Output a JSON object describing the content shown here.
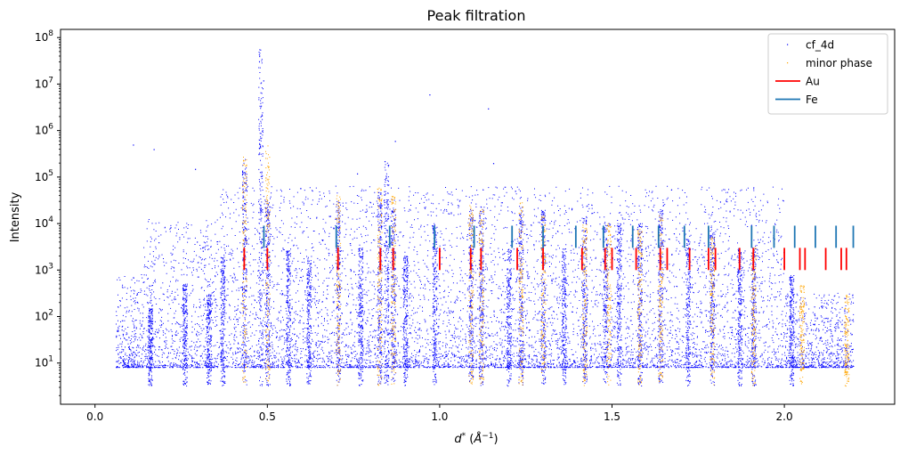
{
  "chart_data": {
    "type": "scatter",
    "title": "Peak filtration",
    "xlabel": "d* (Å⁻¹)",
    "xlabel_parts": {
      "main": "d",
      "sup1": "*",
      "unit_open": "(",
      "unit_letter": "Å",
      "unit_sup": "−1",
      "unit_close": ")"
    },
    "ylabel": "Intensity",
    "xscale": "linear",
    "yscale": "log",
    "xlim": [
      -0.1,
      2.32
    ],
    "ylim": [
      1.3,
      150000000
    ],
    "xticks": [
      0.0,
      0.5,
      1.0,
      1.5,
      2.0
    ],
    "xtick_labels": [
      "0.0",
      "0.5",
      "1.0",
      "1.5",
      "2.0"
    ],
    "yticks": [
      10,
      100,
      1000,
      10000,
      100000,
      1000000,
      10000000,
      100000000
    ],
    "ytick_labels": [
      {
        "base": "10",
        "exp": "1"
      },
      {
        "base": "10",
        "exp": "2"
      },
      {
        "base": "10",
        "exp": "3"
      },
      {
        "base": "10",
        "exp": "4"
      },
      {
        "base": "10",
        "exp": "5"
      },
      {
        "base": "10",
        "exp": "6"
      },
      {
        "base": "10",
        "exp": "7"
      },
      {
        "base": "10",
        "exp": "8"
      }
    ],
    "legend": {
      "placement": "top-right",
      "entries": [
        {
          "label": "cf_4d",
          "kind": "point",
          "color": "#0000ff"
        },
        {
          "label": "minor phase",
          "kind": "point",
          "color": "#ffa500"
        },
        {
          "label": "Au",
          "kind": "line",
          "color": "#ff0000"
        },
        {
          "label": "Fe",
          "kind": "line",
          "color": "#1f77b4"
        }
      ]
    },
    "series": [
      {
        "name": "cf_4d",
        "color": "#0000ff",
        "marker": "pixel",
        "background_x_range": [
          0.06,
          2.2
        ],
        "background_floor": 8,
        "peaks": [
          {
            "x": 0.16,
            "y": 150
          },
          {
            "x": 0.26,
            "y": 500
          },
          {
            "x": 0.33,
            "y": 300
          },
          {
            "x": 0.37,
            "y": 2000
          },
          {
            "x": 0.433,
            "y": 300000
          },
          {
            "x": 0.48,
            "y": 60000000
          },
          {
            "x": 0.5,
            "y": 30000
          },
          {
            "x": 0.56,
            "y": 3000
          },
          {
            "x": 0.62,
            "y": 2000
          },
          {
            "x": 0.705,
            "y": 30000
          },
          {
            "x": 0.77,
            "y": 3000
          },
          {
            "x": 0.825,
            "y": 50000
          },
          {
            "x": 0.845,
            "y": 200000
          },
          {
            "x": 0.865,
            "y": 20000
          },
          {
            "x": 0.9,
            "y": 2000
          },
          {
            "x": 0.985,
            "y": 10000
          },
          {
            "x": 1.09,
            "y": 20000
          },
          {
            "x": 1.12,
            "y": 20000
          },
          {
            "x": 1.2,
            "y": 3000
          },
          {
            "x": 1.235,
            "y": 20000
          },
          {
            "x": 1.3,
            "y": 20000
          },
          {
            "x": 1.36,
            "y": 3000
          },
          {
            "x": 1.42,
            "y": 15000
          },
          {
            "x": 1.48,
            "y": 10000
          },
          {
            "x": 1.52,
            "y": 10000
          },
          {
            "x": 1.58,
            "y": 10000
          },
          {
            "x": 1.64,
            "y": 20000
          },
          {
            "x": 1.72,
            "y": 5000
          },
          {
            "x": 1.79,
            "y": 10000
          },
          {
            "x": 1.87,
            "y": 3000
          },
          {
            "x": 1.91,
            "y": 3000
          },
          {
            "x": 2.02,
            "y": 800
          }
        ],
        "outliers": [
          {
            "x": 0.488,
            "y": 12000000
          },
          {
            "x": 0.97,
            "y": 6000000
          },
          {
            "x": 0.87,
            "y": 600000
          },
          {
            "x": 0.84,
            "y": 220000
          },
          {
            "x": 0.11,
            "y": 500000
          },
          {
            "x": 0.17,
            "y": 400000
          },
          {
            "x": 1.14,
            "y": 3000000
          },
          {
            "x": 1.155,
            "y": 200000
          },
          {
            "x": 0.29,
            "y": 150000
          },
          {
            "x": 0.76,
            "y": 120000
          }
        ]
      },
      {
        "name": "minor phase",
        "color": "#ffa500",
        "marker": "pixel",
        "peaks": [
          {
            "x": 0.433,
            "y": 350000
          },
          {
            "x": 0.5,
            "y": 500000
          },
          {
            "x": 0.705,
            "y": 40000
          },
          {
            "x": 0.825,
            "y": 60000
          },
          {
            "x": 0.865,
            "y": 40000
          },
          {
            "x": 1.09,
            "y": 30000
          },
          {
            "x": 1.12,
            "y": 20000
          },
          {
            "x": 1.235,
            "y": 30000
          },
          {
            "x": 1.3,
            "y": 15000
          },
          {
            "x": 1.42,
            "y": 10000
          },
          {
            "x": 1.49,
            "y": 10000
          },
          {
            "x": 1.58,
            "y": 8000
          },
          {
            "x": 1.64,
            "y": 20000
          },
          {
            "x": 1.79,
            "y": 5000
          },
          {
            "x": 1.91,
            "y": 3000
          },
          {
            "x": 2.05,
            "y": 500
          },
          {
            "x": 2.18,
            "y": 300
          }
        ]
      },
      {
        "name": "Au",
        "color": "#ff0000",
        "marker": "vline",
        "y_range": [
          1000,
          3000
        ],
        "x": [
          0.433,
          0.5,
          0.705,
          0.828,
          0.865,
          1.0,
          1.09,
          1.12,
          1.225,
          1.3,
          1.413,
          1.48,
          1.5,
          1.57,
          1.64,
          1.66,
          1.725,
          1.78,
          1.8,
          1.87,
          1.91,
          2.0,
          2.045,
          2.06,
          2.12,
          2.165,
          2.18
        ]
      },
      {
        "name": "Fe",
        "color": "#1f77b4",
        "marker": "vline",
        "y_range": [
          3000,
          9000
        ],
        "x": [
          0.49,
          0.7,
          0.855,
          0.985,
          1.1,
          1.21,
          1.3,
          1.395,
          1.475,
          1.56,
          1.635,
          1.71,
          1.78,
          1.905,
          1.97,
          2.03,
          2.09,
          2.15,
          2.2
        ]
      }
    ]
  }
}
